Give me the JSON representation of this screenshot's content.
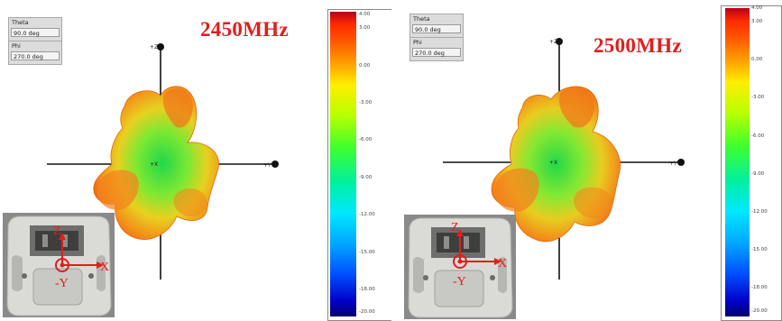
{
  "panels": [
    {
      "frequency": "2450MHz",
      "theta_label": "Theta",
      "theta_value": "90.0 deg",
      "phi_label": "Phi",
      "phi_value": "270.0 deg",
      "axis_labels": {
        "z": "+Z",
        "y": "+Y",
        "x": "+X"
      },
      "colorbar_ticks": [
        "4.00",
        "3.00",
        "0.00",
        "-3.00",
        "-6.00",
        "-9.00",
        "-12.00",
        "-15.00",
        "-18.00",
        "-20.00"
      ],
      "inset_labels": {
        "z": "Z",
        "x": "X",
        "y": "-Y"
      }
    },
    {
      "frequency": "2500MHz",
      "theta_label": "Theta",
      "theta_value": "90.0 deg",
      "phi_label": "Phi",
      "phi_value": "270.0 deg",
      "axis_labels": {
        "z": "+Z",
        "y": "+Y",
        "x": "+X"
      },
      "colorbar_ticks": [
        "4.00",
        "3.00",
        "0.00",
        "-3.00",
        "-6.00",
        "-9.00",
        "-12.00",
        "-15.00",
        "-18.00",
        "-20.00"
      ],
      "inset_labels": {
        "z": "Z",
        "x": "X",
        "y": "-Y"
      }
    }
  ],
  "colors": {
    "title_red": "#e01e1e",
    "pattern_orange": "#f07a18",
    "pattern_green": "#3ed43a"
  }
}
